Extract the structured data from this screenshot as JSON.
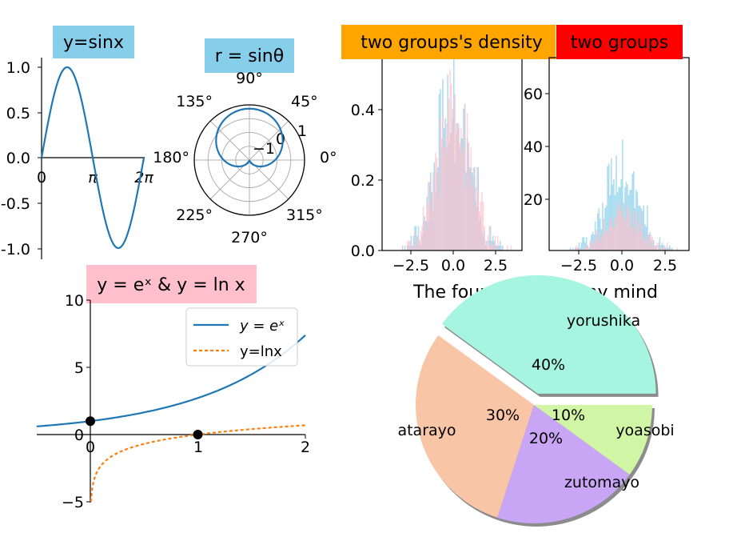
{
  "colors": {
    "sin_line": "#1f77b4",
    "exp_line": "#1f77b4",
    "ln_line": "#ff7f0e",
    "title_sky": "#87ceeb",
    "title_orange": "#ffa500",
    "title_red": "#ff0000",
    "title_pink": "#ffc0cb",
    "hist_blue": "#87ceeb",
    "hist_pink": "#ffc0cb",
    "pie": [
      "#a5f5e0",
      "#f8c5a6",
      "#c9a5f5",
      "#d0f5a5"
    ]
  },
  "chart_data": [
    {
      "id": "sin",
      "type": "line",
      "title": "y=sinx",
      "function": "sin",
      "xlim": [
        0,
        6.2832
      ],
      "ylim": [
        -1.0,
        1.0
      ],
      "xticks": [
        "0",
        "π",
        "2π"
      ],
      "yticks": [
        "1.0",
        "0.5",
        "0.0",
        "-0.5",
        "-1.0"
      ]
    },
    {
      "id": "polar",
      "type": "line",
      "title": "r = sinθ",
      "function": "r=sin(theta)",
      "angle_labels": [
        "0°",
        "45°",
        "90°",
        "135°",
        "180°",
        "225°",
        "270°",
        "315°"
      ],
      "radial_labels": [
        "−1",
        "0",
        "1"
      ]
    },
    {
      "id": "density",
      "type": "bar",
      "title": "two groups's density",
      "xticks": [
        "−2.5",
        "0.0",
        "2.5"
      ],
      "yticks": [
        "0.0",
        "0.2",
        "0.4"
      ],
      "ylim": [
        0,
        0.55
      ],
      "series": [
        {
          "distribution": "normal",
          "mean": 0,
          "sd": 1
        },
        {
          "distribution": "normal",
          "mean": 0,
          "sd": 1
        }
      ]
    },
    {
      "id": "counts",
      "type": "bar",
      "title": "two groups",
      "xticks": [
        "−2.5",
        "0.0",
        "2.5"
      ],
      "yticks": [
        "20",
        "40",
        "60"
      ],
      "ylim": [
        0,
        72
      ],
      "series": [
        {
          "distribution": "normal",
          "mean": 0,
          "sd": 1,
          "n": 1000
        },
        {
          "distribution": "normal",
          "mean": 0,
          "sd": 1,
          "n": 500
        }
      ]
    },
    {
      "id": "explog",
      "type": "line",
      "title": "y = eˣ & y = ln x",
      "xlim": [
        -0.5,
        2
      ],
      "ylim": [
        -5,
        10
      ],
      "xticks": [
        "0",
        "1",
        "2"
      ],
      "yticks": [
        "10",
        "5",
        "0",
        "−5"
      ],
      "series": [
        {
          "name": "y = eˣ",
          "function": "exp"
        },
        {
          "name": "y=lnx",
          "function": "ln"
        }
      ],
      "points": [
        {
          "x": 0,
          "y": 1
        },
        {
          "x": 1,
          "y": 0
        }
      ],
      "legend_position": "upper-right"
    },
    {
      "id": "pie",
      "type": "pie",
      "title": "The four 'YoRu's in my mind",
      "labels": [
        "yorushika",
        "atarayo",
        "zutomayo",
        "yoasobi"
      ],
      "values": [
        40,
        30,
        20,
        10
      ],
      "percent_labels": [
        "40%",
        "30%",
        "20%",
        "10%"
      ],
      "explode": [
        0.1,
        0,
        0,
        0
      ]
    }
  ]
}
